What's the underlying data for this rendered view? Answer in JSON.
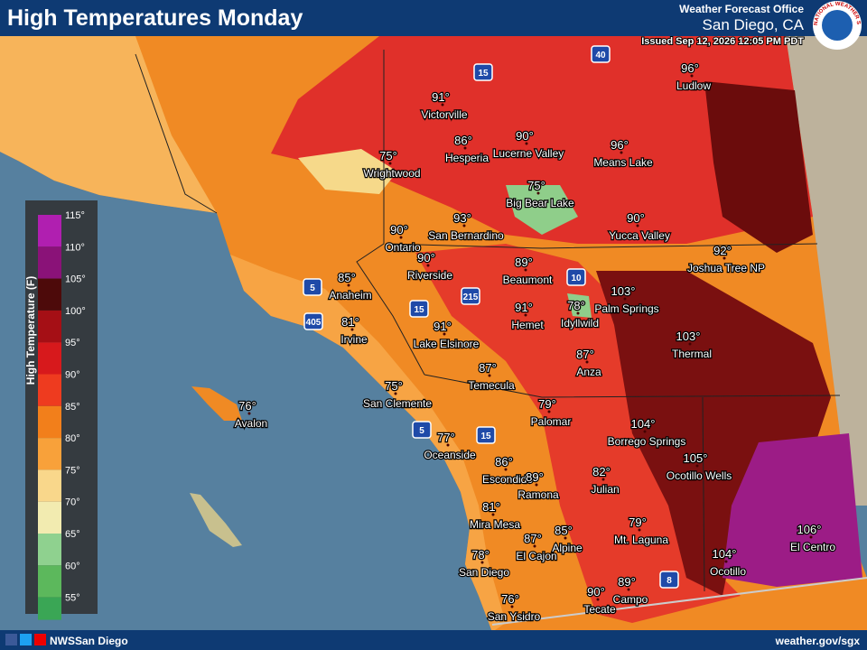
{
  "header": {
    "title": "High Temperatures Monday",
    "office_line": "Weather Forecast Office",
    "office": "San Diego, CA",
    "issued": "Issued Sep 12, 2026 12:05 PM PDT",
    "logo_text": "NATIONAL WEATHER SERVICE"
  },
  "legend": {
    "title": "High Temperature (F)",
    "labels": [
      "115°",
      "110°",
      "105°",
      "100°",
      "95°",
      "90°",
      "85°",
      "80°",
      "75°",
      "70°",
      "65°",
      "60°",
      "55°"
    ]
  },
  "highways": [
    "15",
    "40",
    "10",
    "5",
    "405",
    "15",
    "215",
    "5",
    "15",
    "8"
  ],
  "cities": [
    {
      "name": "Victorville",
      "temp": "91°"
    },
    {
      "name": "Hesperia",
      "temp": "86°"
    },
    {
      "name": "Lucerne Valley",
      "temp": "90°"
    },
    {
      "name": "Means Lake",
      "temp": "96°"
    },
    {
      "name": "Ludlow",
      "temp": "96°"
    },
    {
      "name": "Wrightwood",
      "temp": "75°"
    },
    {
      "name": "Big Bear Lake",
      "temp": "75°"
    },
    {
      "name": "Yucca Valley",
      "temp": "90°"
    },
    {
      "name": "Joshua Tree NP",
      "temp": "92°"
    },
    {
      "name": "San Bernardino",
      "temp": "93°"
    },
    {
      "name": "Ontario",
      "temp": "90°"
    },
    {
      "name": "Riverside",
      "temp": "90°"
    },
    {
      "name": "Beaumont",
      "temp": "89°"
    },
    {
      "name": "Anaheim",
      "temp": "85°"
    },
    {
      "name": "Irvine",
      "temp": "81°"
    },
    {
      "name": "Hemet",
      "temp": "91°"
    },
    {
      "name": "Idyllwild",
      "temp": "78°"
    },
    {
      "name": "Palm Springs",
      "temp": "103°"
    },
    {
      "name": "Lake Elsinore",
      "temp": "91°"
    },
    {
      "name": "Thermal",
      "temp": "103°"
    },
    {
      "name": "Anza",
      "temp": "87°"
    },
    {
      "name": "Temecula",
      "temp": "87°"
    },
    {
      "name": "San Clemente",
      "temp": "75°"
    },
    {
      "name": "Avalon",
      "temp": "76°"
    },
    {
      "name": "Palomar",
      "temp": "79°"
    },
    {
      "name": "Borrego Springs",
      "temp": "104°"
    },
    {
      "name": "Oceanside",
      "temp": "77°"
    },
    {
      "name": "Ocotillo Wells",
      "temp": "105°"
    },
    {
      "name": "Escondido",
      "temp": "86°"
    },
    {
      "name": "Ramona",
      "temp": "89°"
    },
    {
      "name": "Julian",
      "temp": "82°"
    },
    {
      "name": "Mira Mesa",
      "temp": "81°"
    },
    {
      "name": "Mt. Laguna",
      "temp": "79°"
    },
    {
      "name": "El Centro",
      "temp": "106°"
    },
    {
      "name": "Alpine",
      "temp": "85°"
    },
    {
      "name": "El Cajon",
      "temp": "87°"
    },
    {
      "name": "San Diego",
      "temp": "78°"
    },
    {
      "name": "Ocotillo",
      "temp": "104°"
    },
    {
      "name": "Campo",
      "temp": "89°"
    },
    {
      "name": "Tecate",
      "temp": "90°"
    },
    {
      "name": "San Ysidro",
      "temp": "76°"
    }
  ],
  "footer": {
    "social": "NWSSan Diego",
    "url": "weather.gov/sgx"
  }
}
